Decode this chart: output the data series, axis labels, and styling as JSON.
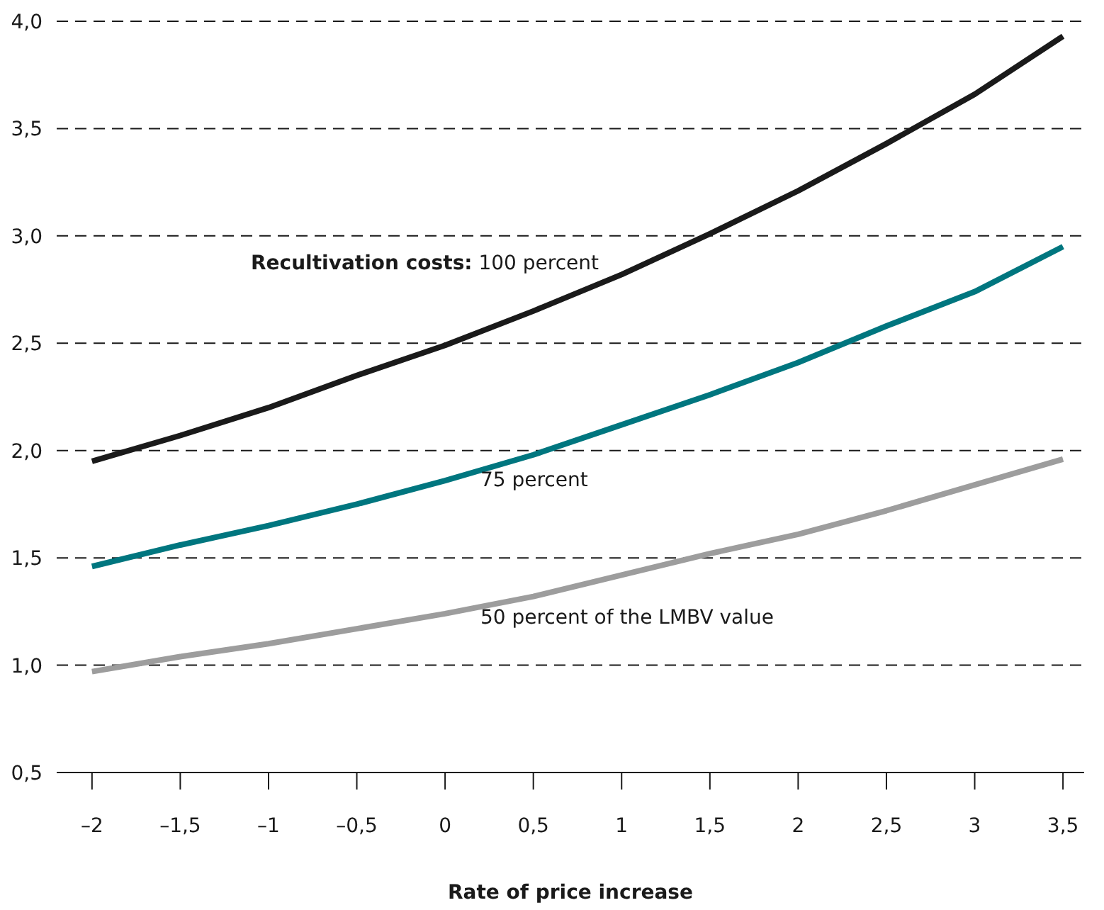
{
  "chart_data": {
    "type": "line",
    "xlabel": "Rate of price increase",
    "x": [
      -2,
      -1.5,
      -1,
      -0.5,
      0,
      0.5,
      1,
      1.5,
      2,
      2.5,
      3,
      3.5
    ],
    "series": [
      {
        "name": "Recultivation costs: 100 percent",
        "color": "#1a1a1a",
        "values": [
          1.95,
          2.07,
          2.2,
          2.35,
          2.49,
          2.65,
          2.82,
          3.01,
          3.21,
          3.43,
          3.66,
          3.93
        ]
      },
      {
        "name": "75 percent",
        "color": "#00767f",
        "values": [
          1.46,
          1.56,
          1.65,
          1.75,
          1.86,
          1.98,
          2.12,
          2.26,
          2.41,
          2.58,
          2.74,
          2.95
        ]
      },
      {
        "name": "50 percent of the LMBV value",
        "color": "#9d9d9d",
        "values": [
          0.97,
          1.04,
          1.1,
          1.17,
          1.24,
          1.32,
          1.42,
          1.52,
          1.61,
          1.72,
          1.84,
          1.96
        ]
      }
    ],
    "xlim": [
      -2.2,
      3.62
    ],
    "xticks": [
      {
        "value": -2,
        "label": "–2"
      },
      {
        "value": -1.5,
        "label": "–1,5"
      },
      {
        "value": -1,
        "label": "–1"
      },
      {
        "value": -0.5,
        "label": "–0,5"
      },
      0,
      {
        "value": 0.5,
        "label": "0,5"
      },
      1,
      {
        "value": 1.5,
        "label": "1,5"
      },
      2,
      {
        "value": 2.5,
        "label": "2,5"
      },
      3,
      {
        "value": 3.5,
        "label": "3,5"
      }
    ],
    "ylim": [
      0.5,
      4
    ],
    "yticks": [
      {
        "value": 0.5,
        "label": "0,5"
      },
      {
        "value": 1,
        "label": "1,0"
      },
      {
        "value": 1.5,
        "label": "1,5"
      },
      {
        "value": 2,
        "label": "2,0"
      },
      {
        "value": 2.5,
        "label": "2,5"
      },
      {
        "value": 3,
        "label": "3,0"
      },
      {
        "value": 3.5,
        "label": "3,5"
      },
      {
        "value": 4,
        "label": "4,0"
      }
    ],
    "grid": "y",
    "marker": "none",
    "line_style": "solid"
  }
}
